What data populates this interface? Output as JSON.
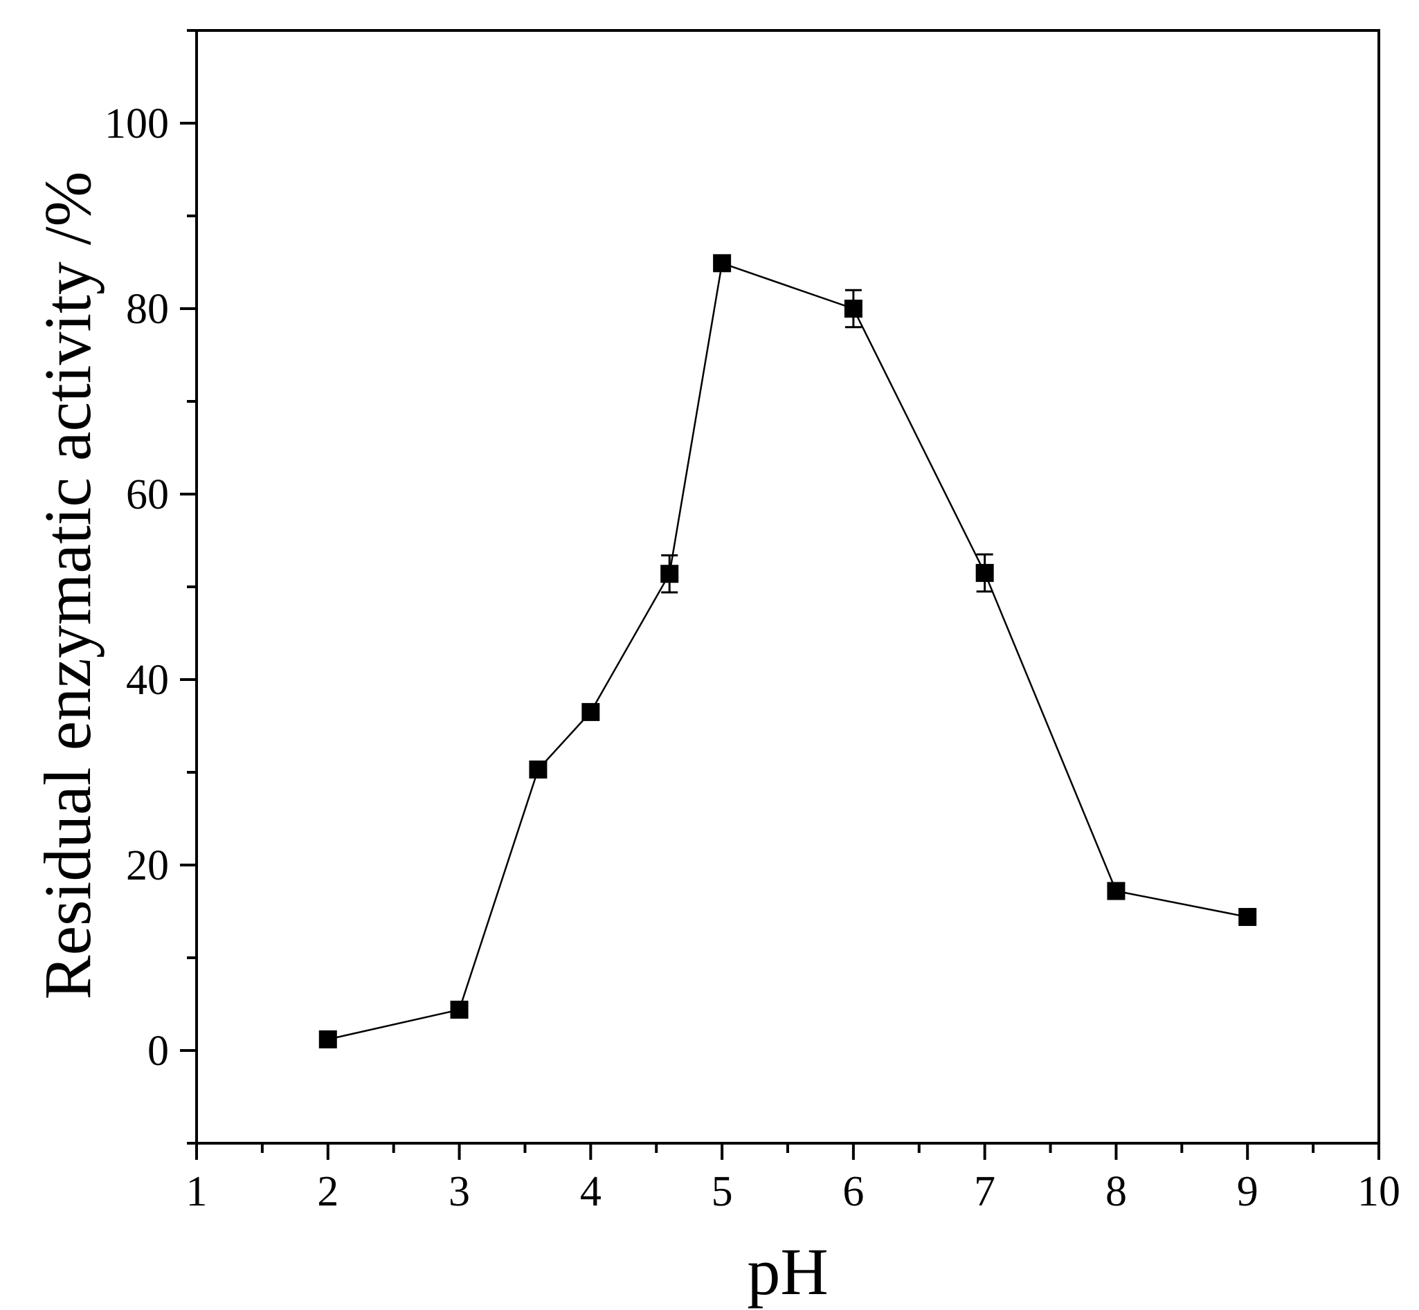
{
  "chart_data": {
    "type": "line",
    "title": "",
    "xlabel": "pH",
    "ylabel": "Residual enzymatic activity /%",
    "xlim": [
      1,
      10
    ],
    "ylim": [
      -10,
      110
    ],
    "x_ticks": [
      1,
      2,
      3,
      4,
      5,
      6,
      7,
      8,
      9,
      10
    ],
    "x_minor_ticks": [
      1.5,
      2.5,
      3.5,
      4.5,
      5.5,
      6.5,
      7.5,
      8.5,
      9.5
    ],
    "y_ticks": [
      0,
      20,
      40,
      60,
      80,
      100
    ],
    "y_minor_ticks": [
      -10,
      10,
      30,
      50,
      70,
      90,
      110
    ],
    "grid": false,
    "legend": "none",
    "marker": "square",
    "color": "#000000",
    "series": [
      {
        "x": [
          2,
          3,
          3.6,
          4,
          4.6,
          5,
          6,
          7,
          8,
          9
        ],
        "y": [
          1.2,
          4.4,
          30.3,
          36.5,
          51.4,
          84.9,
          80.0,
          51.5,
          17.2,
          14.4
        ],
        "error": [
          0.3,
          0.4,
          0.5,
          0.5,
          2.0,
          0.5,
          2.0,
          2.0,
          0.5,
          0.4
        ]
      }
    ]
  }
}
